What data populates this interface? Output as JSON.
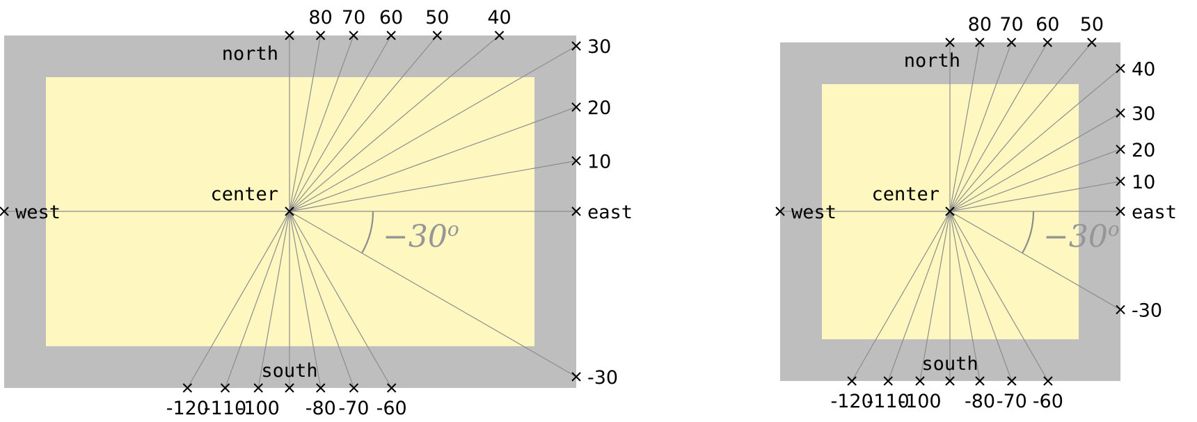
{
  "colors": {
    "outer_rect": "#bebebe",
    "inner_rect": "#fef8c0",
    "rays": "#8c8c8c",
    "angle_label": "#969696",
    "marks": "#000000"
  },
  "diagrams": [
    {
      "labels": {
        "north": "north",
        "south": "south",
        "east": "east",
        "west": "west",
        "center": "center",
        "angle": "−30",
        "angle_sup": "o"
      },
      "angles": [
        {
          "value": 80,
          "label": "80",
          "side": "top"
        },
        {
          "value": 70,
          "label": "70",
          "side": "top"
        },
        {
          "value": 60,
          "label": "60",
          "side": "top"
        },
        {
          "value": 50,
          "label": "50",
          "side": "top"
        },
        {
          "value": 40,
          "label": "40",
          "side": "top"
        },
        {
          "value": 30,
          "label": "30",
          "side": "right"
        },
        {
          "value": 20,
          "label": "20",
          "side": "right"
        },
        {
          "value": 10,
          "label": "10",
          "side": "right"
        },
        {
          "value": -30,
          "label": "-30",
          "side": "right"
        },
        {
          "value": -60,
          "label": "-60",
          "side": "bottom"
        },
        {
          "value": -70,
          "label": "-70",
          "side": "bottom"
        },
        {
          "value": -80,
          "label": "-80",
          "side": "bottom"
        },
        {
          "value": -100,
          "label": "-100",
          "side": "bottom"
        },
        {
          "value": -110,
          "label": "-110",
          "side": "bottom"
        },
        {
          "value": -120,
          "label": "-120",
          "side": "bottom"
        }
      ]
    },
    {
      "labels": {
        "north": "north",
        "south": "south",
        "east": "east",
        "west": "west",
        "center": "center",
        "angle": "−30",
        "angle_sup": "o"
      },
      "angles": [
        {
          "value": 80,
          "label": "80",
          "side": "top"
        },
        {
          "value": 70,
          "label": "70",
          "side": "top"
        },
        {
          "value": 60,
          "label": "60",
          "side": "top"
        },
        {
          "value": 50,
          "label": "50",
          "side": "top"
        },
        {
          "value": 40,
          "label": "40",
          "side": "right"
        },
        {
          "value": 30,
          "label": "30",
          "side": "right"
        },
        {
          "value": 20,
          "label": "20",
          "side": "right"
        },
        {
          "value": 10,
          "label": "10",
          "side": "right"
        },
        {
          "value": -30,
          "label": "-30",
          "side": "right"
        },
        {
          "value": -60,
          "label": "-60",
          "side": "bottom"
        },
        {
          "value": -70,
          "label": "-70",
          "side": "bottom"
        },
        {
          "value": -80,
          "label": "-80",
          "side": "bottom"
        },
        {
          "value": -100,
          "label": "-100",
          "side": "bottom"
        },
        {
          "value": -110,
          "label": "-110",
          "side": "bottom"
        },
        {
          "value": -120,
          "label": "-120",
          "side": "bottom"
        }
      ]
    }
  ]
}
